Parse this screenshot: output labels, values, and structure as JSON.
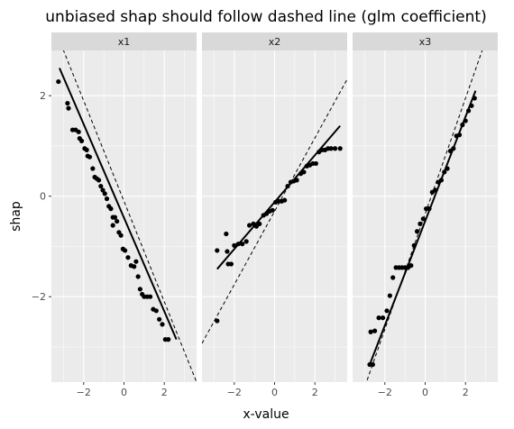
{
  "chart_data": {
    "type": "scatter",
    "title": "unbiased shap should follow dashed line (glm coefficient)",
    "xlabel": "x-value",
    "ylabel": "shap",
    "xlim": [
      -3.6,
      3.6
    ],
    "ylim": [
      -3.7,
      2.9
    ],
    "x_ticks": [
      -2,
      0,
      2
    ],
    "y_ticks": [
      -2,
      0,
      2
    ],
    "x_tick_labels": [
      "−2",
      "0",
      "2"
    ],
    "y_tick_labels": [
      "−2",
      "0",
      "2"
    ],
    "grid": true,
    "colors": {
      "panel_background": "#ebebeb",
      "grid_major": "#ffffff",
      "strip_background": "#d9d9d9",
      "points": "#000000",
      "lines": "#000000"
    },
    "panels": [
      {
        "label": "x1",
        "dashed_line": {
          "slope": -1.0,
          "intercept": -0.1
        },
        "fit_line": {
          "x": [
            -3.2,
            2.6
          ],
          "y": [
            2.55,
            -2.85
          ]
        },
        "points": [
          [
            -3.25,
            2.28
          ],
          [
            -2.8,
            1.85
          ],
          [
            -2.75,
            1.75
          ],
          [
            -2.55,
            1.32
          ],
          [
            -2.4,
            1.32
          ],
          [
            -2.25,
            1.28
          ],
          [
            -2.2,
            1.15
          ],
          [
            -2.1,
            1.1
          ],
          [
            -1.95,
            0.95
          ],
          [
            -1.85,
            0.92
          ],
          [
            -1.8,
            0.8
          ],
          [
            -1.7,
            0.78
          ],
          [
            -1.55,
            0.55
          ],
          [
            -1.45,
            0.38
          ],
          [
            -1.35,
            0.35
          ],
          [
            -1.25,
            0.32
          ],
          [
            -1.15,
            0.2
          ],
          [
            -1.05,
            0.12
          ],
          [
            -0.95,
            0.05
          ],
          [
            -0.85,
            -0.05
          ],
          [
            -0.75,
            -0.2
          ],
          [
            -0.65,
            -0.25
          ],
          [
            -0.55,
            -0.42
          ],
          [
            -0.45,
            -0.42
          ],
          [
            -0.55,
            -0.58
          ],
          [
            -0.35,
            -0.5
          ],
          [
            -0.25,
            -0.72
          ],
          [
            -0.15,
            -0.78
          ],
          [
            -0.05,
            -1.05
          ],
          [
            0.05,
            -1.08
          ],
          [
            0.2,
            -1.22
          ],
          [
            0.35,
            -1.38
          ],
          [
            0.5,
            -1.4
          ],
          [
            0.6,
            -1.3
          ],
          [
            0.7,
            -1.6
          ],
          [
            0.8,
            -1.85
          ],
          [
            0.9,
            -1.95
          ],
          [
            1.0,
            -2.0
          ],
          [
            1.15,
            -2.0
          ],
          [
            1.3,
            -2.0
          ],
          [
            1.45,
            -2.25
          ],
          [
            1.6,
            -2.28
          ],
          [
            1.75,
            -2.45
          ],
          [
            1.9,
            -2.55
          ],
          [
            2.05,
            -2.85
          ],
          [
            2.2,
            -2.85
          ]
        ]
      },
      {
        "label": "x2",
        "dashed_line": {
          "slope": 0.73,
          "intercept": -0.3
        },
        "fit_line": {
          "x": [
            -2.85,
            3.25
          ],
          "y": [
            -1.45,
            1.4
          ]
        },
        "points": [
          [
            -2.85,
            -1.08
          ],
          [
            -2.85,
            -2.48
          ],
          [
            -2.4,
            -0.75
          ],
          [
            -2.35,
            -1.1
          ],
          [
            -2.3,
            -1.35
          ],
          [
            -2.15,
            -1.35
          ],
          [
            -2.0,
            -0.98
          ],
          [
            -1.8,
            -0.95
          ],
          [
            -1.6,
            -0.95
          ],
          [
            -1.4,
            -0.9
          ],
          [
            -1.25,
            -0.58
          ],
          [
            -1.05,
            -0.55
          ],
          [
            -0.9,
            -0.6
          ],
          [
            -0.75,
            -0.55
          ],
          [
            -0.55,
            -0.38
          ],
          [
            -0.4,
            -0.35
          ],
          [
            -0.25,
            -0.3
          ],
          [
            -0.1,
            -0.28
          ],
          [
            0.05,
            -0.12
          ],
          [
            0.2,
            -0.1
          ],
          [
            0.35,
            -0.1
          ],
          [
            0.5,
            -0.08
          ],
          [
            0.65,
            0.2
          ],
          [
            0.8,
            0.28
          ],
          [
            0.95,
            0.3
          ],
          [
            1.1,
            0.32
          ],
          [
            1.3,
            0.45
          ],
          [
            1.45,
            0.48
          ],
          [
            1.6,
            0.6
          ],
          [
            1.75,
            0.62
          ],
          [
            1.9,
            0.65
          ],
          [
            2.05,
            0.65
          ],
          [
            2.2,
            0.88
          ],
          [
            2.35,
            0.92
          ],
          [
            2.5,
            0.92
          ],
          [
            2.65,
            0.95
          ],
          [
            2.8,
            0.95
          ],
          [
            3.0,
            0.95
          ],
          [
            3.25,
            0.95
          ]
        ]
      },
      {
        "label": "x3",
        "dashed_line": {
          "slope": 1.15,
          "intercept": -0.35
        },
        "fit_line": {
          "x": [
            -2.75,
            2.5
          ],
          "y": [
            -3.35,
            2.1
          ]
        },
        "points": [
          [
            -2.75,
            -3.35
          ],
          [
            -2.6,
            -3.35
          ],
          [
            -2.7,
            -2.7
          ],
          [
            -2.5,
            -2.68
          ],
          [
            -2.3,
            -2.42
          ],
          [
            -2.1,
            -2.42
          ],
          [
            -1.9,
            -2.28
          ],
          [
            -1.75,
            -1.98
          ],
          [
            -1.6,
            -1.62
          ],
          [
            -1.45,
            -1.42
          ],
          [
            -1.3,
            -1.42
          ],
          [
            -1.15,
            -1.42
          ],
          [
            -1.0,
            -1.42
          ],
          [
            -0.85,
            -1.42
          ],
          [
            -0.7,
            -1.38
          ],
          [
            -0.55,
            -0.98
          ],
          [
            -0.4,
            -0.7
          ],
          [
            -0.25,
            -0.55
          ],
          [
            -0.1,
            -0.45
          ],
          [
            0.05,
            -0.25
          ],
          [
            0.2,
            -0.25
          ],
          [
            0.35,
            0.08
          ],
          [
            0.5,
            0.12
          ],
          [
            0.65,
            0.28
          ],
          [
            0.8,
            0.32
          ],
          [
            0.95,
            0.48
          ],
          [
            1.1,
            0.55
          ],
          [
            1.25,
            0.9
          ],
          [
            1.4,
            0.95
          ],
          [
            1.55,
            1.2
          ],
          [
            1.7,
            1.22
          ],
          [
            1.85,
            1.42
          ],
          [
            2.0,
            1.5
          ],
          [
            2.15,
            1.7
          ],
          [
            2.3,
            1.8
          ],
          [
            2.45,
            1.95
          ]
        ]
      }
    ]
  }
}
